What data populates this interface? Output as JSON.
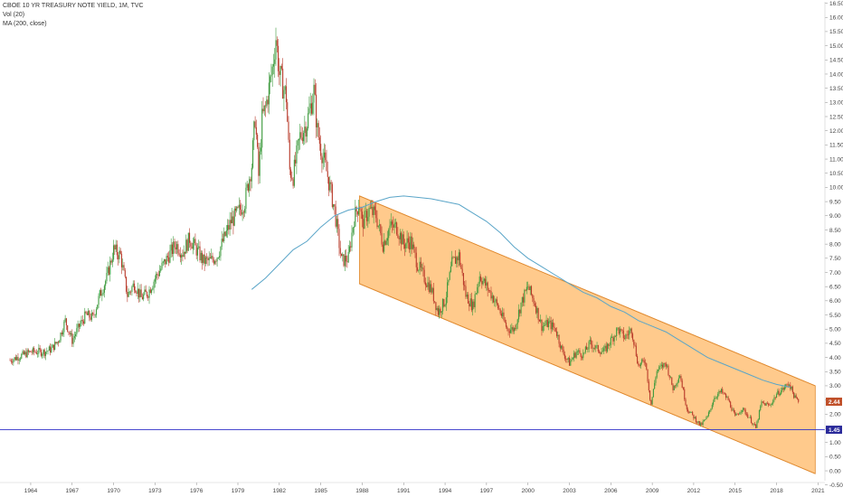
{
  "legend": {
    "title": "CBOE 10 YR TREASURY NOTE YIELD, 1M, TVC",
    "indicator_vol": "Vol (20)",
    "indicator_ma": "MA (200, close)"
  },
  "colors": {
    "up_candle": "#3d9a3d",
    "down_candle": "#b83a2a",
    "ma_line": "#5aa5c8",
    "channel_fill": "#ffb866",
    "channel_edge": "#e08a30",
    "support_line": "#3030c8",
    "last_badge": "#c0502a",
    "level_badge": "#2a2a9a"
  },
  "chart_data": {
    "type": "line",
    "xlim": [
      1962.3,
      2021.5
    ],
    "ylim": [
      -0.35,
      16.55
    ],
    "x_ticks": [
      "1964",
      "1967",
      "1970",
      "1973",
      "1976",
      "1979",
      "1982",
      "1985",
      "1988",
      "1991",
      "1994",
      "1997",
      "2000",
      "2003",
      "2006",
      "2009",
      "2012",
      "2015",
      "2018",
      "2021"
    ],
    "y_ticks": [
      "-0.50",
      "0.00",
      "0.50",
      "1.00",
      "1.50",
      "2.00",
      "2.50",
      "3.00",
      "3.50",
      "4.00",
      "4.50",
      "5.00",
      "5.50",
      "6.00",
      "6.50",
      "7.00",
      "7.50",
      "8.00",
      "8.50",
      "9.00",
      "9.50",
      "10.00",
      "10.50",
      "11.00",
      "11.50",
      "12.00",
      "12.50",
      "13.00",
      "13.50",
      "14.00",
      "14.50",
      "15.00",
      "15.50",
      "16.00",
      "16.50"
    ],
    "series": [
      {
        "type": "candlestick-approx",
        "points": [
          [
            1962.5,
            3.9
          ],
          [
            1963.0,
            4.0
          ],
          [
            1963.5,
            4.1
          ],
          [
            1964.0,
            4.2
          ],
          [
            1964.5,
            4.2
          ],
          [
            1965.0,
            4.2
          ],
          [
            1965.5,
            4.3
          ],
          [
            1966.0,
            4.6
          ],
          [
            1966.5,
            5.3
          ],
          [
            1967.0,
            4.6
          ],
          [
            1967.5,
            5.1
          ],
          [
            1968.0,
            5.5
          ],
          [
            1968.5,
            5.4
          ],
          [
            1969.0,
            6.2
          ],
          [
            1969.5,
            6.8
          ],
          [
            1970.0,
            7.8
          ],
          [
            1970.5,
            7.6
          ],
          [
            1971.0,
            6.2
          ],
          [
            1971.5,
            6.6
          ],
          [
            1972.0,
            6.1
          ],
          [
            1972.5,
            6.3
          ],
          [
            1973.0,
            6.8
          ],
          [
            1973.5,
            7.2
          ],
          [
            1974.0,
            7.6
          ],
          [
            1974.5,
            8.0
          ],
          [
            1975.0,
            7.7
          ],
          [
            1975.5,
            8.2
          ],
          [
            1976.0,
            7.8
          ],
          [
            1976.5,
            7.4
          ],
          [
            1977.0,
            7.4
          ],
          [
            1977.5,
            7.6
          ],
          [
            1978.0,
            8.2
          ],
          [
            1978.5,
            8.8
          ],
          [
            1979.0,
            9.1
          ],
          [
            1979.5,
            9.5
          ],
          [
            1980.0,
            10.8
          ],
          [
            1980.25,
            12.5
          ],
          [
            1980.5,
            10.4
          ],
          [
            1980.75,
            12.4
          ],
          [
            1981.0,
            12.8
          ],
          [
            1981.5,
            14.2
          ],
          [
            1981.75,
            15.3
          ],
          [
            1982.0,
            14.0
          ],
          [
            1982.5,
            13.2
          ],
          [
            1982.75,
            10.6
          ],
          [
            1983.0,
            10.4
          ],
          [
            1983.5,
            11.8
          ],
          [
            1984.0,
            12.3
          ],
          [
            1984.5,
            13.4
          ],
          [
            1984.75,
            12.0
          ],
          [
            1985.0,
            11.4
          ],
          [
            1985.5,
            10.4
          ],
          [
            1986.0,
            9.2
          ],
          [
            1986.5,
            7.4
          ],
          [
            1987.0,
            7.5
          ],
          [
            1987.4,
            8.9
          ],
          [
            1987.8,
            9.5
          ],
          [
            1988.0,
            8.7
          ],
          [
            1988.5,
            9.2
          ],
          [
            1989.0,
            9.0
          ],
          [
            1989.5,
            8.0
          ],
          [
            1990.0,
            8.6
          ],
          [
            1990.5,
            8.6
          ],
          [
            1991.0,
            8.0
          ],
          [
            1991.5,
            8.1
          ],
          [
            1992.0,
            7.3
          ],
          [
            1992.5,
            6.8
          ],
          [
            1993.0,
            6.4
          ],
          [
            1993.5,
            5.6
          ],
          [
            1994.0,
            6.0
          ],
          [
            1994.5,
            7.3
          ],
          [
            1995.0,
            7.6
          ],
          [
            1995.5,
            6.2
          ],
          [
            1996.0,
            5.8
          ],
          [
            1996.5,
            6.9
          ],
          [
            1997.0,
            6.5
          ],
          [
            1997.5,
            6.1
          ],
          [
            1998.0,
            5.6
          ],
          [
            1998.5,
            5.0
          ],
          [
            1999.0,
            5.0
          ],
          [
            1999.5,
            5.9
          ],
          [
            2000.0,
            6.5
          ],
          [
            2000.5,
            5.9
          ],
          [
            2001.0,
            5.1
          ],
          [
            2001.5,
            5.2
          ],
          [
            2002.0,
            5.0
          ],
          [
            2002.5,
            4.2
          ],
          [
            2003.0,
            3.8
          ],
          [
            2003.5,
            4.2
          ],
          [
            2004.0,
            4.1
          ],
          [
            2004.5,
            4.5
          ],
          [
            2005.0,
            4.3
          ],
          [
            2005.5,
            4.2
          ],
          [
            2006.0,
            4.6
          ],
          [
            2006.5,
            5.0
          ],
          [
            2007.0,
            4.7
          ],
          [
            2007.5,
            5.0
          ],
          [
            2008.0,
            3.7
          ],
          [
            2008.5,
            3.9
          ],
          [
            2008.9,
            2.3
          ],
          [
            2009.3,
            3.5
          ],
          [
            2009.5,
            3.6
          ],
          [
            2010.0,
            3.8
          ],
          [
            2010.5,
            2.9
          ],
          [
            2011.0,
            3.4
          ],
          [
            2011.5,
            2.2
          ],
          [
            2012.0,
            1.9
          ],
          [
            2012.5,
            1.6
          ],
          [
            2013.0,
            1.9
          ],
          [
            2013.5,
            2.6
          ],
          [
            2014.0,
            2.8
          ],
          [
            2014.5,
            2.5
          ],
          [
            2015.0,
            1.9
          ],
          [
            2015.5,
            2.2
          ],
          [
            2016.0,
            1.9
          ],
          [
            2016.5,
            1.5
          ],
          [
            2016.9,
            2.4
          ],
          [
            2017.5,
            2.3
          ],
          [
            2018.0,
            2.7
          ],
          [
            2018.5,
            2.9
          ],
          [
            2018.9,
            3.1
          ],
          [
            2019.3,
            2.6
          ],
          [
            2019.6,
            2.44
          ]
        ]
      },
      {
        "name": "MA (200, close)",
        "type": "line",
        "points": [
          [
            1980.0,
            6.4
          ],
          [
            1981.0,
            6.8
          ],
          [
            1982.0,
            7.3
          ],
          [
            1983.0,
            7.8
          ],
          [
            1984.0,
            8.1
          ],
          [
            1985.0,
            8.6
          ],
          [
            1986.0,
            9.0
          ],
          [
            1987.0,
            9.2
          ],
          [
            1988.0,
            9.3
          ],
          [
            1989.0,
            9.5
          ],
          [
            1990.0,
            9.65
          ],
          [
            1991.0,
            9.7
          ],
          [
            1992.0,
            9.65
          ],
          [
            1993.0,
            9.6
          ],
          [
            1994.0,
            9.5
          ],
          [
            1995.0,
            9.4
          ],
          [
            1996.0,
            9.1
          ],
          [
            1997.0,
            8.8
          ],
          [
            1998.0,
            8.4
          ],
          [
            1999.0,
            7.9
          ],
          [
            2000.0,
            7.5
          ],
          [
            2001.0,
            7.2
          ],
          [
            2002.0,
            6.9
          ],
          [
            2003.0,
            6.6
          ],
          [
            2004.0,
            6.3
          ],
          [
            2005.0,
            6.1
          ],
          [
            2006.0,
            5.8
          ],
          [
            2007.0,
            5.6
          ],
          [
            2008.0,
            5.3
          ],
          [
            2009.0,
            5.1
          ],
          [
            2010.0,
            4.9
          ],
          [
            2011.0,
            4.6
          ],
          [
            2012.0,
            4.3
          ],
          [
            2013.0,
            4.0
          ],
          [
            2014.0,
            3.8
          ],
          [
            2015.0,
            3.6
          ],
          [
            2016.0,
            3.4
          ],
          [
            2017.0,
            3.2
          ],
          [
            2018.0,
            3.05
          ],
          [
            2019.0,
            2.95
          ]
        ]
      }
    ],
    "channel": {
      "upper": [
        [
          1987.8,
          9.7
        ],
        [
          2020.8,
          3.0
        ]
      ],
      "lower": [
        [
          1987.8,
          6.6
        ],
        [
          2020.8,
          -0.1
        ]
      ],
      "x_end_visible": 2020.8
    },
    "horizontal_line": {
      "value": 1.45
    },
    "badges": [
      {
        "value": 2.44,
        "label": "2.44"
      },
      {
        "value": 1.45,
        "label": "1.45"
      }
    ]
  }
}
